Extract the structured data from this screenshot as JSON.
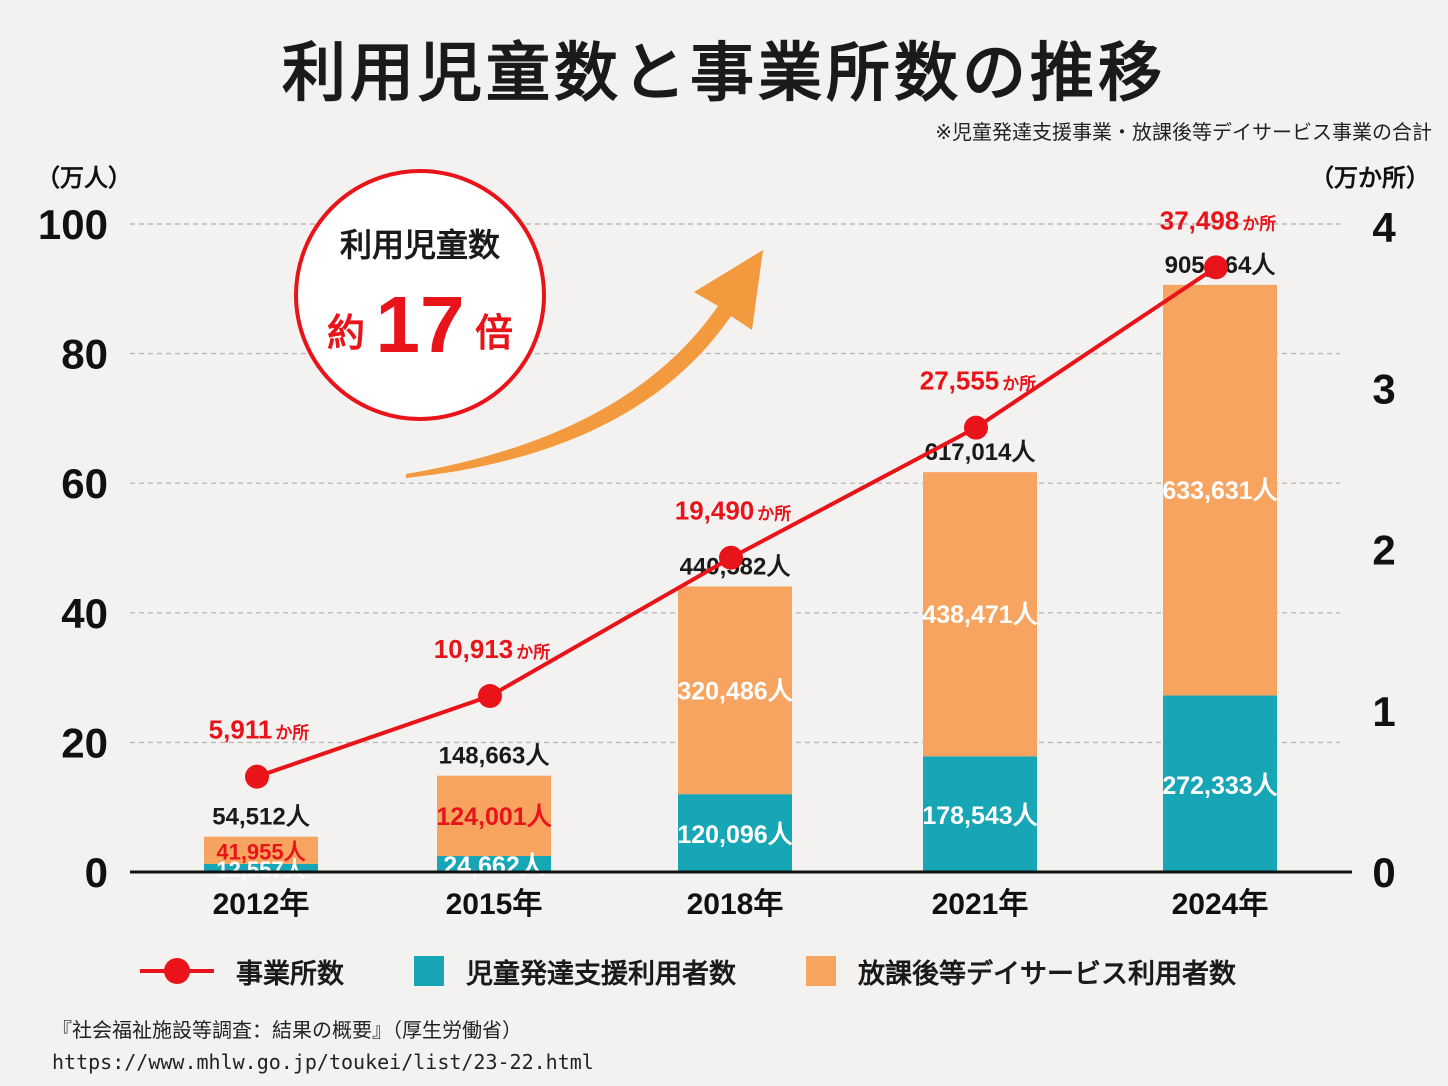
{
  "title": "利用児童数と事業所数の推移",
  "note": "※児童発達支援事業・放課後等デイサービス事業の合計",
  "colors": {
    "line": "#e8141a",
    "teal": "#17a6b5",
    "orange": "#f7a460",
    "arrow": "#f39a3e",
    "axis": "#111111",
    "grid": "#b9b9b9",
    "bar_label_white": "#ffffff",
    "bar_label_red": "#e8141a"
  },
  "chart_data": {
    "type": "bar",
    "categories": [
      "2012年",
      "2015年",
      "2018年",
      "2021年",
      "2024年"
    ],
    "y_left": {
      "unit_label": "（万人）",
      "ticks": [
        "0",
        "20",
        "40",
        "60",
        "80",
        "100"
      ],
      "ylim": [
        0,
        100
      ]
    },
    "y_right": {
      "unit_label": "（万か所）",
      "ticks": [
        "0",
        "1",
        "2",
        "3",
        "4"
      ],
      "ylim": [
        0,
        4
      ]
    },
    "series": [
      {
        "name": "児童発達支援利用者数",
        "kind": "bar-stack",
        "color": "#17a6b5",
        "values_man": [
          1.2557,
          2.4662,
          12.0096,
          17.8543,
          27.2333
        ],
        "labels": [
          "12,557人",
          "24,662人",
          "120,096人",
          "178,543人",
          "272,333人"
        ]
      },
      {
        "name": "放課後等デイサービス利用者数",
        "kind": "bar-stack",
        "color": "#f7a460",
        "values_man": [
          4.1955,
          12.4001,
          32.0486,
          43.8471,
          63.3631
        ],
        "labels": [
          "41,955人",
          "124,001人",
          "320,486人",
          "438,471人",
          "633,631人"
        ]
      },
      {
        "name": "事業所数",
        "kind": "line",
        "axis": "right",
        "color": "#e8141a",
        "values_man": [
          0.5911,
          1.0913,
          1.949,
          2.7555,
          3.7498
        ],
        "labels": [
          "5,911",
          "10,913",
          "19,490",
          "27,555",
          "37,498"
        ],
        "unit": "か所"
      }
    ],
    "totals": [
      "54,512人",
      "148,663人",
      "440,582人",
      "617,014人",
      "905,964人"
    ],
    "grid": true,
    "callout": {
      "line1": "利用児童数",
      "prefix": "約",
      "number": "17",
      "suffix": "倍"
    }
  },
  "legend": [
    {
      "label": "事業所数",
      "kind": "line"
    },
    {
      "label": "児童発達支援利用者数",
      "kind": "teal"
    },
    {
      "label": "放課後等デイサービス利用者数",
      "kind": "orange"
    }
  ],
  "source": {
    "line1": "『社会福祉施設等調査：結果の概要』（厚生労働省）",
    "line2": "https://www.mhlw.go.jp/toukei/list/23-22.html"
  }
}
